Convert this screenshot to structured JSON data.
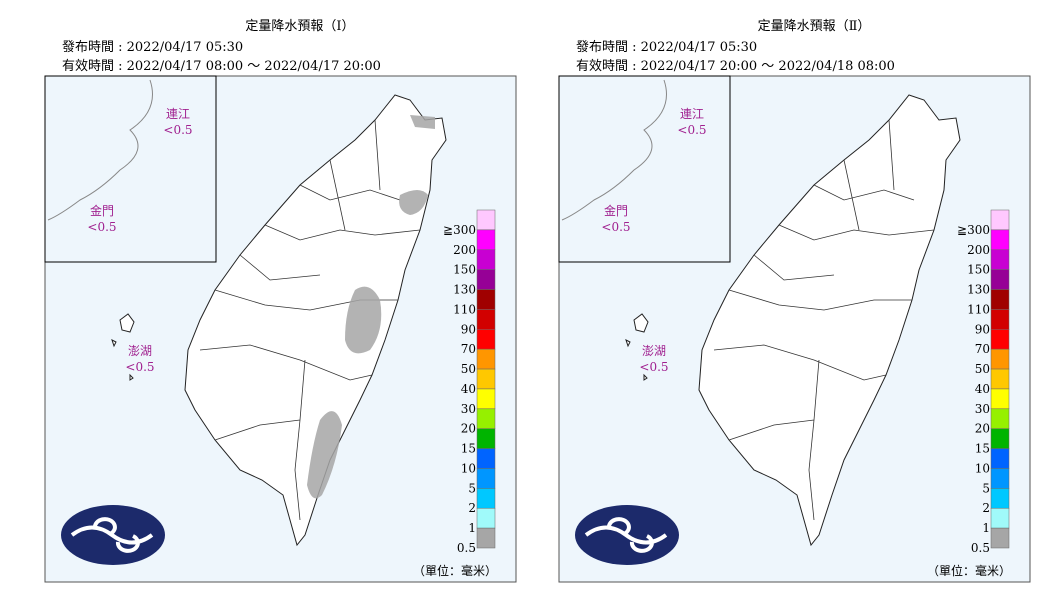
{
  "panels": [
    {
      "title": "定量降水預報（Ⅰ）",
      "issued": "發布時間 : 2022/04/17 05:30",
      "valid": "有效時間 : 2022/04/17 08:00 ～ 2022/04/17 20:00",
      "islands": [
        {
          "name": "連江",
          "value": "<0.5"
        },
        {
          "name": "金門",
          "value": "<0.5"
        },
        {
          "name": "澎湖",
          "value": "<0.5"
        }
      ]
    },
    {
      "title": "定量降水預報（Ⅱ）",
      "issued": "發布時間 : 2022/04/17 05:30",
      "valid": "有效時間 : 2022/04/17 20:00 ～ 2022/04/18 08:00",
      "islands": [
        {
          "name": "連江",
          "value": "<0.5"
        },
        {
          "name": "金門",
          "value": "<0.5"
        },
        {
          "name": "澎湖",
          "value": "<0.5"
        }
      ]
    }
  ],
  "legend": {
    "unit": "（單位：毫米）",
    "levels": [
      {
        "label": "≧300",
        "color": "#ffc8ff"
      },
      {
        "label": "200",
        "color": "#ff00ff"
      },
      {
        "label": "150",
        "color": "#c800d2"
      },
      {
        "label": "130",
        "color": "#960096"
      },
      {
        "label": "110",
        "color": "#a00000"
      },
      {
        "label": "90",
        "color": "#d20000"
      },
      {
        "label": "70",
        "color": "#ff0000"
      },
      {
        "label": "50",
        "color": "#ff9600"
      },
      {
        "label": "40",
        "color": "#ffc800"
      },
      {
        "label": "30",
        "color": "#ffff00"
      },
      {
        "label": "20",
        "color": "#96f000"
      },
      {
        "label": "15",
        "color": "#00b400"
      },
      {
        "label": "10",
        "color": "#0064ff"
      },
      {
        "label": "5",
        "color": "#0096ff"
      },
      {
        "label": "2",
        "color": "#00c8ff"
      },
      {
        "label": "1",
        "color": "#a0fafa"
      },
      {
        "label": "0.5",
        "color": "#a6a6a6"
      }
    ]
  }
}
